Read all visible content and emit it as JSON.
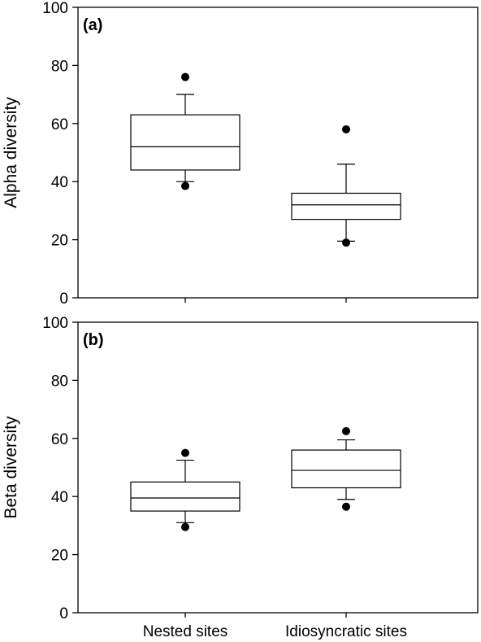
{
  "chart_data": [
    {
      "type": "box",
      "panel_label": "(a)",
      "ylabel": "Alpha diversity",
      "xlabel": "",
      "ylim": [
        0,
        100
      ],
      "yticks": [
        0,
        20,
        40,
        60,
        80,
        100
      ],
      "categories": [
        "Nested sites",
        "Idiosyncratic sites"
      ],
      "boxes": [
        {
          "category": "Nested sites",
          "whisker_low": 40,
          "q1": 44,
          "median": 52,
          "q3": 63,
          "whisker_high": 70,
          "outliers": [
            76,
            38.5
          ]
        },
        {
          "category": "Idiosyncratic sites",
          "whisker_low": 19.5,
          "q1": 27,
          "median": 32,
          "q3": 36,
          "whisker_high": 46,
          "outliers": [
            58,
            19
          ]
        }
      ],
      "grid": false,
      "show_category_labels": false
    },
    {
      "type": "box",
      "panel_label": "(b)",
      "ylabel": "Beta diversity",
      "xlabel": "",
      "ylim": [
        0,
        100
      ],
      "yticks": [
        0,
        20,
        40,
        60,
        80,
        100
      ],
      "categories": [
        "Nested sites",
        "Idiosyncratic sites"
      ],
      "boxes": [
        {
          "category": "Nested sites",
          "whisker_low": 31,
          "q1": 35,
          "median": 39.5,
          "q3": 45,
          "whisker_high": 52.5,
          "outliers": [
            55,
            29.5
          ]
        },
        {
          "category": "Idiosyncratic sites",
          "whisker_low": 39,
          "q1": 43,
          "median": 49,
          "q3": 56,
          "whisker_high": 59.5,
          "outliers": [
            62.5,
            36.5
          ]
        }
      ],
      "grid": false,
      "show_category_labels": true
    }
  ]
}
